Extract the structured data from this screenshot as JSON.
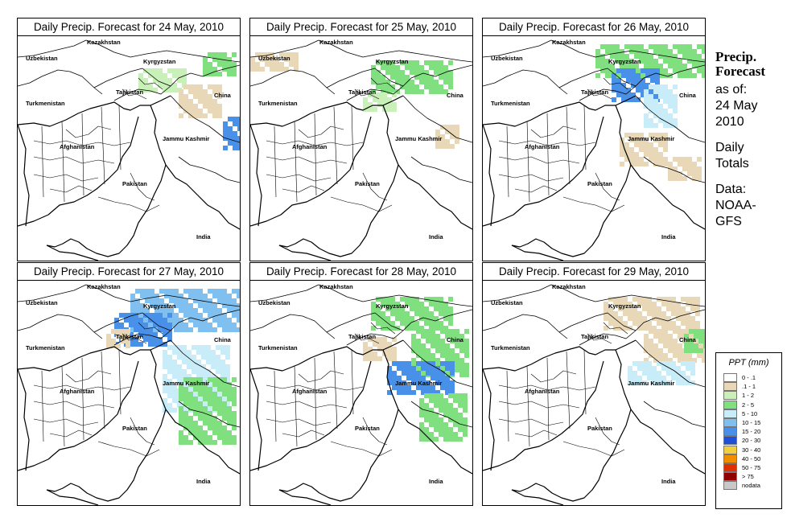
{
  "panels": [
    {
      "title": "Daily Precip. Forecast for  24 May, 2010"
    },
    {
      "title": "Daily Precip. Forecast for  25 May, 2010"
    },
    {
      "title": "Daily Precip. Forecast for  26 May, 2010"
    },
    {
      "title": "Daily Precip. Forecast for  27 May, 2010"
    },
    {
      "title": "Daily Precip. Forecast for  28 May, 2010"
    },
    {
      "title": "Daily Precip. Forecast for  29 May, 2010"
    }
  ],
  "map_labels": {
    "kazakhstan": "Kazakhstan",
    "uzbekistan": "Uzbekistan",
    "kyrgyzstan": "Kyrgyzstan",
    "tajikistan": "Tajikistan",
    "turkmenistan": "Turkmenistan",
    "china": "China",
    "afghanistan": "Afghanistan",
    "jammu_kashmir": "Jammu Kashmir",
    "pakistan": "Pakistan",
    "india": "India"
  },
  "side": {
    "title_line1": "Precip.",
    "title_line2": "Forecast",
    "asof_line1": "as of:",
    "asof_line2": "24 May",
    "asof_line3": "2010",
    "totals_line1": "Daily",
    "totals_line2": "Totals",
    "data_line1": "Data:",
    "data_line2": "NOAA-",
    "data_line3": "GFS"
  },
  "legend": {
    "title": "PPT (mm)",
    "entries": [
      {
        "label": "0 - .1",
        "color": "#ffffff"
      },
      {
        "label": ".1 - 1",
        "color": "#e8d8b8"
      },
      {
        "label": "1 - 2",
        "color": "#c8f0b8"
      },
      {
        "label": "2 - 5",
        "color": "#80e080"
      },
      {
        "label": "5 - 10",
        "color": "#c8ecf8"
      },
      {
        "label": "10 - 15",
        "color": "#80c0f0"
      },
      {
        "label": "15 - 20",
        "color": "#4890e8"
      },
      {
        "label": "20 - 30",
        "color": "#2050d8"
      },
      {
        "label": "30 - 40",
        "color": "#f0d040"
      },
      {
        "label": "40 - 50",
        "color": "#f09000"
      },
      {
        "label": "50 - 75",
        "color": "#e03000"
      },
      {
        "label": "> 75",
        "color": "#900000"
      },
      {
        "label": "nodata",
        "color": "#c8c8c8"
      }
    ]
  }
}
